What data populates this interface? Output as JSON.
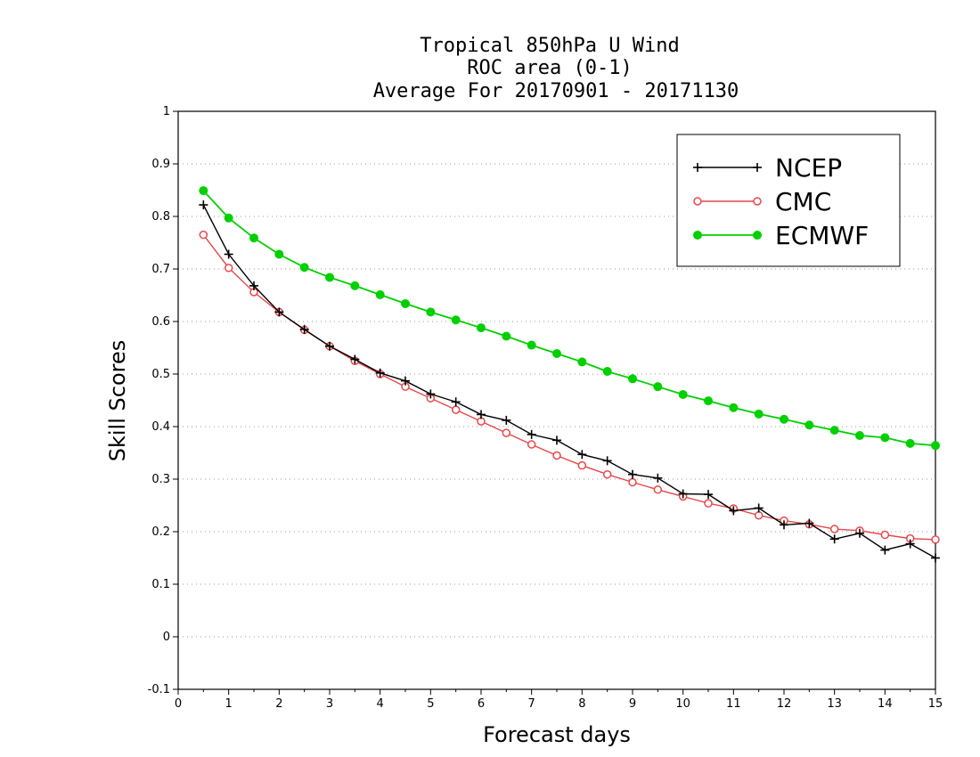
{
  "chart_data": {
    "type": "line",
    "title": [
      "Tropical 850hPa U Wind",
      "ROC area (0-1)",
      "Average For 20170901 - 20171130"
    ],
    "xlabel": "Forecast days",
    "ylabel": "Skill Scores",
    "xlim": [
      0,
      15
    ],
    "ylim": [
      -0.1,
      1
    ],
    "xticks": [
      "0",
      "1",
      "2",
      "3",
      "4",
      "5",
      "6",
      "7",
      "8",
      "9",
      "10",
      "11",
      "12",
      "13",
      "14",
      "15"
    ],
    "yticks": [
      "-0.1",
      "0",
      "0.1",
      "0.2",
      "0.3",
      "0.4",
      "0.5",
      "0.6",
      "0.7",
      "0.8",
      "0.9",
      "1"
    ],
    "grid": "horizontal dotted",
    "legend_position": "top-right",
    "x": [
      0.5,
      1,
      1.5,
      2,
      2.5,
      3,
      3.5,
      4,
      4.5,
      5,
      5.5,
      6,
      6.5,
      7,
      7.5,
      8,
      8.5,
      9,
      9.5,
      10,
      10.5,
      11,
      11.5,
      12,
      12.5,
      13,
      13.5,
      14,
      14.5,
      15
    ],
    "series": [
      {
        "name": "NCEP",
        "color": "#000000",
        "marker": "plus",
        "values": [
          0.822,
          0.728,
          0.668,
          0.618,
          0.585,
          0.553,
          0.528,
          0.502,
          0.487,
          0.462,
          0.447,
          0.423,
          0.412,
          0.385,
          0.374,
          0.347,
          0.335,
          0.309,
          0.302,
          0.272,
          0.271,
          0.24,
          0.245,
          0.213,
          0.216,
          0.186,
          0.197,
          0.165,
          0.177,
          0.15
        ]
      },
      {
        "name": "CMC",
        "color": "#e8474a",
        "marker": "open-circle",
        "values": [
          0.765,
          0.702,
          0.656,
          0.618,
          0.584,
          0.553,
          0.525,
          0.5,
          0.476,
          0.454,
          0.432,
          0.41,
          0.388,
          0.366,
          0.345,
          0.326,
          0.309,
          0.294,
          0.28,
          0.267,
          0.254,
          0.244,
          0.231,
          0.221,
          0.214,
          0.205,
          0.202,
          0.194,
          0.187,
          0.185
        ]
      },
      {
        "name": "ECMWF",
        "color": "#00d000",
        "marker": "filled-circle",
        "values": [
          0.849,
          0.797,
          0.759,
          0.728,
          0.703,
          0.684,
          0.668,
          0.651,
          0.634,
          0.618,
          0.603,
          0.588,
          0.572,
          0.555,
          0.539,
          0.523,
          0.505,
          0.491,
          0.476,
          0.461,
          0.449,
          0.436,
          0.424,
          0.414,
          0.403,
          0.393,
          0.383,
          0.379,
          0.368,
          0.364
        ]
      }
    ]
  }
}
